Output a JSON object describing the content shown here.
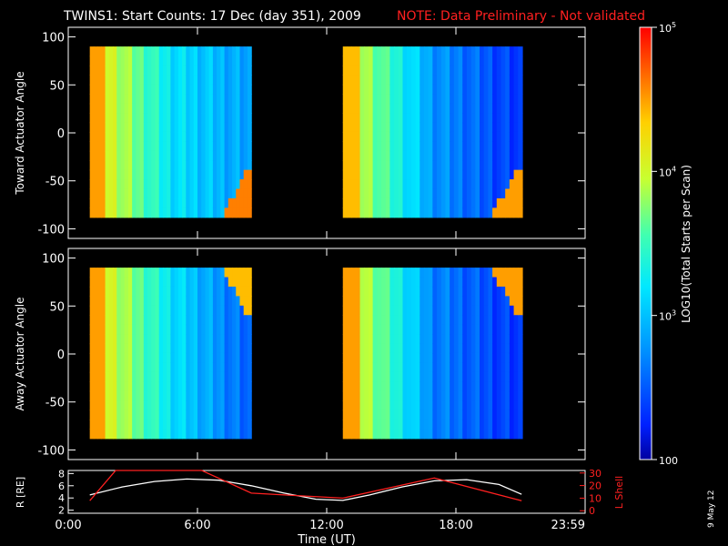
{
  "title": {
    "main": "TWINS1: Start Counts: 17 Dec (day 351), 2009",
    "note": "NOTE: Data Preliminary - Not validated"
  },
  "colors": {
    "background": "#000000",
    "foreground": "#ffffff",
    "note": "#ff2020",
    "orbit_r": "#ffffff",
    "orbit_l": "#ff2020"
  },
  "colorbar": {
    "label": "LOG10(Total Starts per Scan)",
    "ticks": [
      "10^5",
      "10^4",
      "10^3",
      "100"
    ],
    "range_log": [
      2,
      5
    ],
    "colormap": "rainbow (blue-cyan-green-yellow-red)"
  },
  "date_stamp": "9 May 12",
  "chart_data": [
    {
      "type": "heatmap",
      "name": "toward",
      "ylabel": "Toward Actuator Angle",
      "ylim": [
        -110,
        110
      ],
      "yticks": [
        100,
        50,
        0,
        -50,
        -100
      ],
      "xlim_hours": [
        0,
        24
      ],
      "segments": [
        {
          "start": "1:00",
          "end": "8:30"
        },
        {
          "start": "12:45",
          "end": "21:05"
        }
      ],
      "angle_range": [
        -88,
        90
      ],
      "log_counts": {
        "segment1": {
          "early": 4.3,
          "mid": 3.2,
          "late": 2.8,
          "edge_high_south": 4.6
        },
        "segment2": {
          "early": 4.2,
          "mid": 2.8,
          "late": 2.3,
          "edge_high_south": 4.5
        }
      }
    },
    {
      "type": "heatmap",
      "name": "away",
      "ylabel": "Away Actuator Angle",
      "ylim": [
        -110,
        110
      ],
      "yticks": [
        100,
        50,
        0,
        -50,
        -100
      ],
      "xlim_hours": [
        0,
        24
      ],
      "segments": [
        {
          "start": "1:00",
          "end": "8:30"
        },
        {
          "start": "12:45",
          "end": "21:05"
        }
      ],
      "angle_range": [
        -88,
        90
      ],
      "log_counts": {
        "segment1": {
          "early": 4.3,
          "mid": 3.2,
          "late": 2.5,
          "edge_high_north": 4.4
        },
        "segment2": {
          "early": 4.3,
          "mid": 2.7,
          "late": 2.3,
          "edge_high_north": 4.5
        }
      }
    },
    {
      "type": "line",
      "name": "orbit",
      "xlabel": "Time (UT)",
      "xticks": [
        "0:00",
        "6:00",
        "12:00",
        "18:00",
        "23:59"
      ],
      "left_axis": {
        "label": "R [RE]",
        "ticks": [
          8,
          6,
          4,
          2
        ],
        "ylim": [
          1.5,
          8.5
        ]
      },
      "right_axis": {
        "label": "L Shell",
        "ticks": [
          30,
          20,
          10,
          0
        ],
        "ylim": [
          -2,
          32
        ]
      },
      "series": [
        {
          "name": "R [RE]",
          "x": [
            1.0,
            2.5,
            4.0,
            5.5,
            7.0,
            8.5,
            10.0,
            11.5,
            12.75,
            14.0,
            15.5,
            17.0,
            18.5,
            20.0,
            21.05
          ],
          "y": [
            4.5,
            5.8,
            6.7,
            7.1,
            6.9,
            6.0,
            4.8,
            3.8,
            3.6,
            4.5,
            5.8,
            6.8,
            7.0,
            6.2,
            4.6
          ]
        },
        {
          "name": "L Shell",
          "x": [
            1.0,
            2.2,
            6.2,
            8.5,
            12.75,
            17.0,
            21.05
          ],
          "y": [
            8,
            34,
            34,
            14,
            10,
            26,
            8
          ]
        }
      ]
    }
  ]
}
